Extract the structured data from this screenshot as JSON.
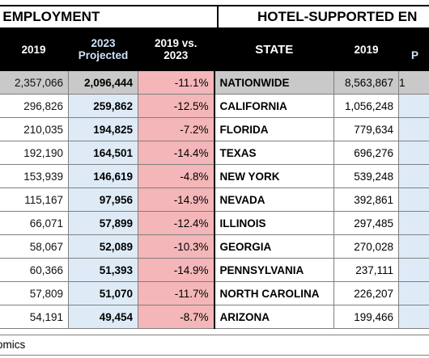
{
  "titles": {
    "left": "CT EMPLOYMENT",
    "right": "HOTEL-SUPPORTED EN"
  },
  "headers": {
    "y2019": "2019",
    "y2023_line1": "2023",
    "y2023_line2": "Projected",
    "change_line1": "2019 vs.",
    "change_line2": "2023",
    "state": "STATE",
    "supported_2019": "2019",
    "supported_next": "P"
  },
  "rows": [
    {
      "direct_2019": "2,357,066",
      "direct_2023": "2,096,444",
      "change": "-11.1%",
      "state": "NATIONWIDE",
      "supported_2019": "8,563,867",
      "next": "1"
    },
    {
      "direct_2019": "296,826",
      "direct_2023": "259,862",
      "change": "-12.5%",
      "state": "CALIFORNIA",
      "supported_2019": "1,056,248",
      "next": ""
    },
    {
      "direct_2019": "210,035",
      "direct_2023": "194,825",
      "change": "-7.2%",
      "state": "FLORIDA",
      "supported_2019": "779,634",
      "next": ""
    },
    {
      "direct_2019": "192,190",
      "direct_2023": "164,501",
      "change": "-14.4%",
      "state": "TEXAS",
      "supported_2019": "696,276",
      "next": ""
    },
    {
      "direct_2019": "153,939",
      "direct_2023": "146,619",
      "change": "-4.8%",
      "state": "NEW YORK",
      "supported_2019": "539,248",
      "next": ""
    },
    {
      "direct_2019": "115,167",
      "direct_2023": "97,956",
      "change": "-14.9%",
      "state": "NEVADA",
      "supported_2019": "392,861",
      "next": ""
    },
    {
      "direct_2019": "66,071",
      "direct_2023": "57,899",
      "change": "-12.4%",
      "state": "ILLINOIS",
      "supported_2019": "297,485",
      "next": ""
    },
    {
      "direct_2019": "58,067",
      "direct_2023": "52,089",
      "change": "-10.3%",
      "state": "GEORGIA",
      "supported_2019": "270,028",
      "next": ""
    },
    {
      "direct_2019": "60,366",
      "direct_2023": "51,393",
      "change": "-14.9%",
      "state": "PENNSYLVANIA",
      "supported_2019": "237,111",
      "next": ""
    },
    {
      "direct_2019": "57,809",
      "direct_2023": "51,070",
      "change": "-11.7%",
      "state": "NORTH CAROLINA",
      "supported_2019": "226,207",
      "next": ""
    },
    {
      "direct_2019": "54,191",
      "direct_2023": "49,454",
      "change": "-8.7%",
      "state": "ARIZONA",
      "supported_2019": "199,466",
      "next": ""
    }
  ],
  "source": "omics"
}
